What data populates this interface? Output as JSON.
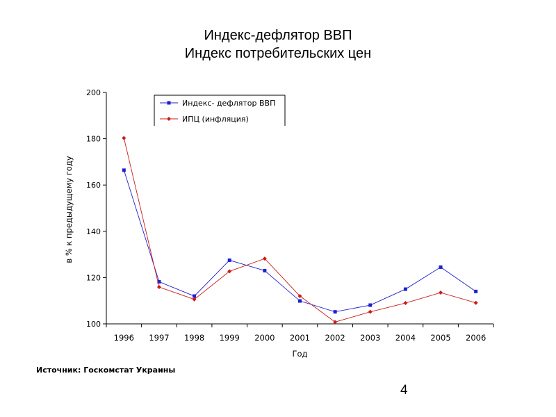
{
  "slide": {
    "title_line1": "Индекс-дефлятор ВВП",
    "title_line2": "Индекс потребительских цен",
    "source": "Источник: Госкомстат Украины",
    "page_number": "4"
  },
  "chart_data": {
    "type": "line",
    "x": [
      "1996",
      "1997",
      "1998",
      "1999",
      "2000",
      "2001",
      "2002",
      "2003",
      "2004",
      "2005",
      "2006"
    ],
    "series": [
      {
        "name": "Индекс- дефлятор ВВП",
        "color": "#1f1fd0",
        "marker": "square",
        "values": [
          166.4,
          118.2,
          112.0,
          127.5,
          123.0,
          109.9,
          105.2,
          108.1,
          115.0,
          124.5,
          114.0
        ]
      },
      {
        "name": "ИПЦ (инфляция)",
        "color": "#cc1a1a",
        "marker": "diamond",
        "values": [
          180.3,
          115.9,
          110.6,
          122.7,
          128.2,
          112.0,
          100.8,
          105.2,
          109.0,
          113.5,
          109.1
        ]
      }
    ],
    "xlabel": "Год",
    "ylabel": "в % к предыдущему году",
    "ylim": [
      100,
      200
    ],
    "yticks": [
      "100",
      "120",
      "140",
      "160",
      "180",
      "200"
    ],
    "grid": false,
    "legend": "top-left"
  }
}
